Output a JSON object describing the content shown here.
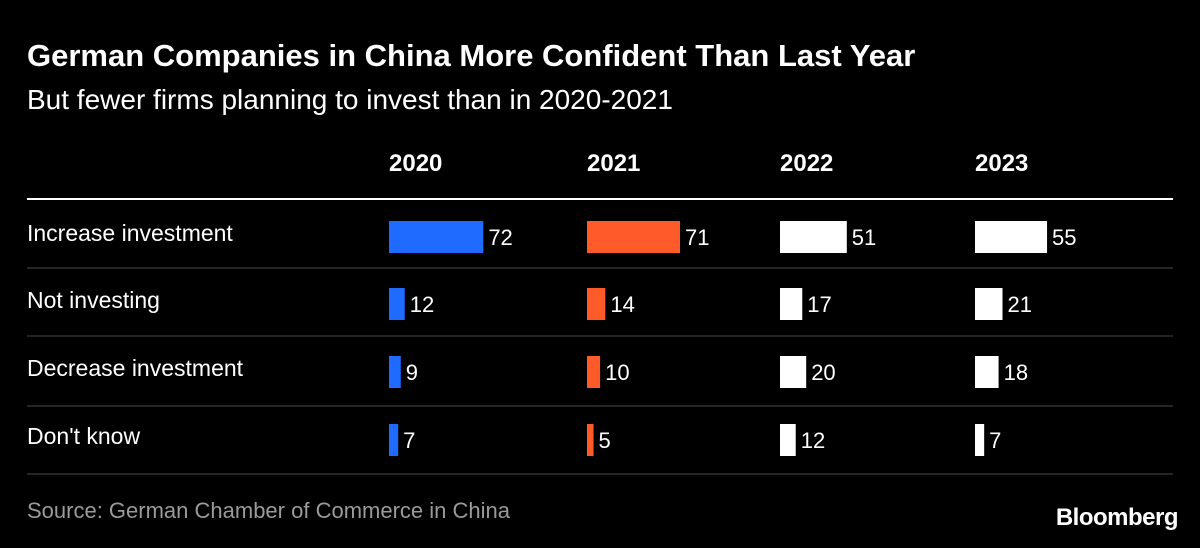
{
  "title": "German Companies in China More Confident Than Last Year",
  "subtitle": "But fewer firms planning to invest than in 2020-2021",
  "source": "Source: German Chamber of Commerce in China",
  "logo": "Bloomberg",
  "chart_data": {
    "type": "bar",
    "layout": "small-multiples-horizontal",
    "categories": [
      "Increase investment",
      "Not investing",
      "Decrease investment",
      "Don't know"
    ],
    "series": [
      {
        "name": "2020",
        "values": [
          72,
          12,
          9,
          7
        ],
        "color": "#1f6bff"
      },
      {
        "name": "2021",
        "values": [
          71,
          14,
          10,
          5
        ],
        "color": "#ff5a2a"
      },
      {
        "name": "2022",
        "values": [
          51,
          17,
          20,
          12
        ],
        "color": "#ffffff"
      },
      {
        "name": "2023",
        "values": [
          55,
          21,
          18,
          7
        ],
        "color": "#ffffff"
      }
    ],
    "grid": true
  }
}
